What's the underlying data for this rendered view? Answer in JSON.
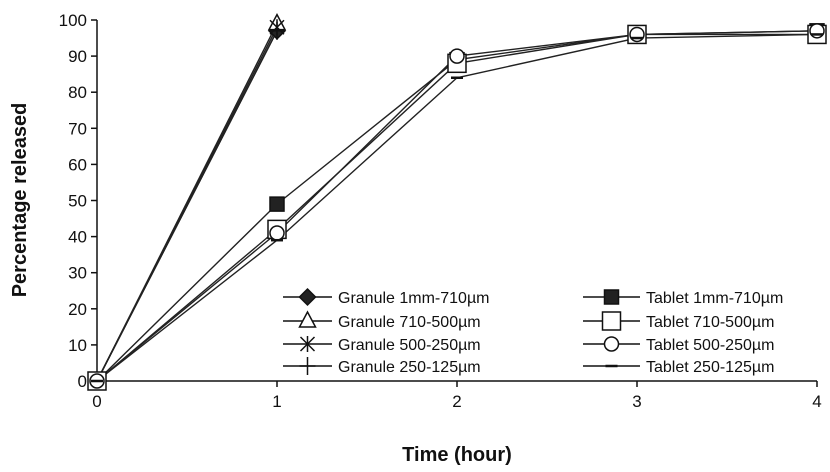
{
  "chart_data": {
    "type": "line",
    "xlabel": "Time (hour)",
    "ylabel": "Percentage released",
    "xlim": [
      0,
      4
    ],
    "ylim": [
      0,
      100
    ],
    "x_ticks": [
      "0",
      "1",
      "2",
      "3",
      "4"
    ],
    "y_ticks": [
      "0",
      "10",
      "20",
      "30",
      "40",
      "50",
      "60",
      "70",
      "80",
      "90",
      "100"
    ],
    "grid": false,
    "legend_position": "bottom-right",
    "series": [
      {
        "name": "Granule 1mm-710µm",
        "marker": "diamond-filled",
        "x": [
          0,
          1
        ],
        "y": [
          0,
          97
        ]
      },
      {
        "name": "Granule 710-500µm",
        "marker": "triangle-open",
        "x": [
          0,
          1
        ],
        "y": [
          0,
          99
        ]
      },
      {
        "name": "Granule 500-250µm",
        "marker": "asterisk",
        "x": [
          0,
          1
        ],
        "y": [
          0,
          98
        ]
      },
      {
        "name": "Granule 250-125µm",
        "marker": "plus",
        "x": [
          0,
          1
        ],
        "y": [
          0,
          97
        ]
      },
      {
        "name": "Tablet 1mm-710µm",
        "marker": "square-filled",
        "x": [
          0,
          1,
          2,
          3,
          4
        ],
        "y": [
          0,
          49,
          89,
          96,
          97
        ]
      },
      {
        "name": "Tablet 710-500µm",
        "marker": "square-open",
        "x": [
          0,
          1,
          2,
          3,
          4
        ],
        "y": [
          0,
          42,
          88,
          96,
          96
        ]
      },
      {
        "name": "Tablet 500-250µm",
        "marker": "circle-open",
        "x": [
          0,
          1,
          2,
          3,
          4
        ],
        "y": [
          0,
          41,
          90,
          96,
          97
        ]
      },
      {
        "name": "Tablet 250-125µm",
        "marker": "dash",
        "x": [
          0,
          1,
          2,
          3,
          4
        ],
        "y": [
          0,
          39,
          84,
          95,
          96
        ]
      }
    ]
  }
}
